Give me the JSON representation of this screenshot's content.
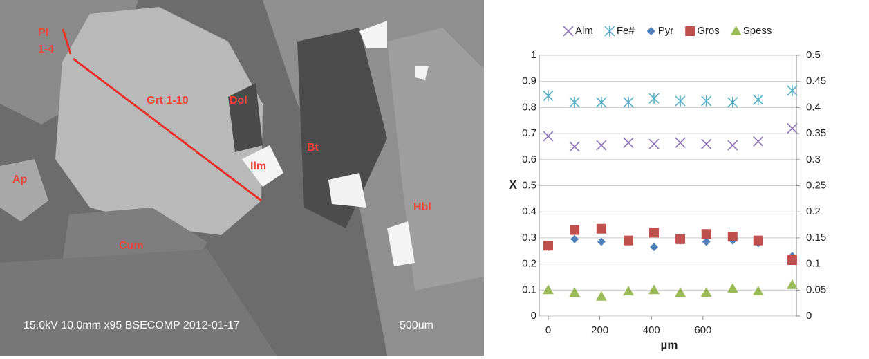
{
  "micrograph": {
    "labels": [
      "Pl",
      "1-4",
      "Grt 1-10",
      "Dol",
      "Bt",
      "Ilm",
      "Ap",
      "Hbl",
      "Cum"
    ],
    "caption": "15.0kV 10.0mm x95 BSECOMP 2012-01-17",
    "scale": "500um"
  },
  "chart_data": {
    "type": "scatter",
    "x_label": "µm",
    "y_label": "X",
    "x": [
      0,
      102,
      206,
      311,
      410,
      512,
      613,
      715,
      814,
      946
    ],
    "series": [
      {
        "name": "Alm",
        "color": "#8e6fb8",
        "marker": "x",
        "values": [
          0.69,
          0.65,
          0.655,
          0.665,
          0.66,
          0.665,
          0.66,
          0.655,
          0.67,
          0.72
        ]
      },
      {
        "name": "Fe#",
        "color": "#4bacc6",
        "marker": "asterisk",
        "values": [
          0.845,
          0.82,
          0.82,
          0.82,
          0.835,
          0.825,
          0.825,
          0.82,
          0.83,
          0.865
        ]
      },
      {
        "name": "Pyr",
        "color": "#4f81bd",
        "marker": "diamond",
        "values": [
          0.265,
          0.295,
          0.285,
          0.29,
          0.265,
          0.29,
          0.285,
          0.29,
          0.28,
          0.23
        ]
      },
      {
        "name": "Gros",
        "color": "#c0504d",
        "marker": "square",
        "values": [
          0.27,
          0.33,
          0.335,
          0.29,
          0.32,
          0.295,
          0.315,
          0.305,
          0.29,
          0.215
        ]
      },
      {
        "name": "Spess",
        "color": "#9bbb59",
        "marker": "triangle",
        "values": [
          0.1,
          0.09,
          0.075,
          0.095,
          0.1,
          0.09,
          0.09,
          0.105,
          0.095,
          0.12
        ]
      }
    ],
    "xlim": [
      0,
      946
    ],
    "xticks": [
      0,
      200,
      400,
      600
    ],
    "ylim": [
      0,
      1
    ],
    "yticks": [
      0,
      0.1,
      0.2,
      0.3,
      0.4,
      0.5,
      0.6,
      0.7,
      0.8,
      0.9,
      1
    ],
    "y2lim": [
      0,
      0.5
    ],
    "y2ticks": [
      0,
      0.05,
      0.1,
      0.15,
      0.2,
      0.25,
      0.3,
      0.35,
      0.4,
      0.45,
      0.5
    ],
    "grid": true,
    "legend": "top"
  }
}
